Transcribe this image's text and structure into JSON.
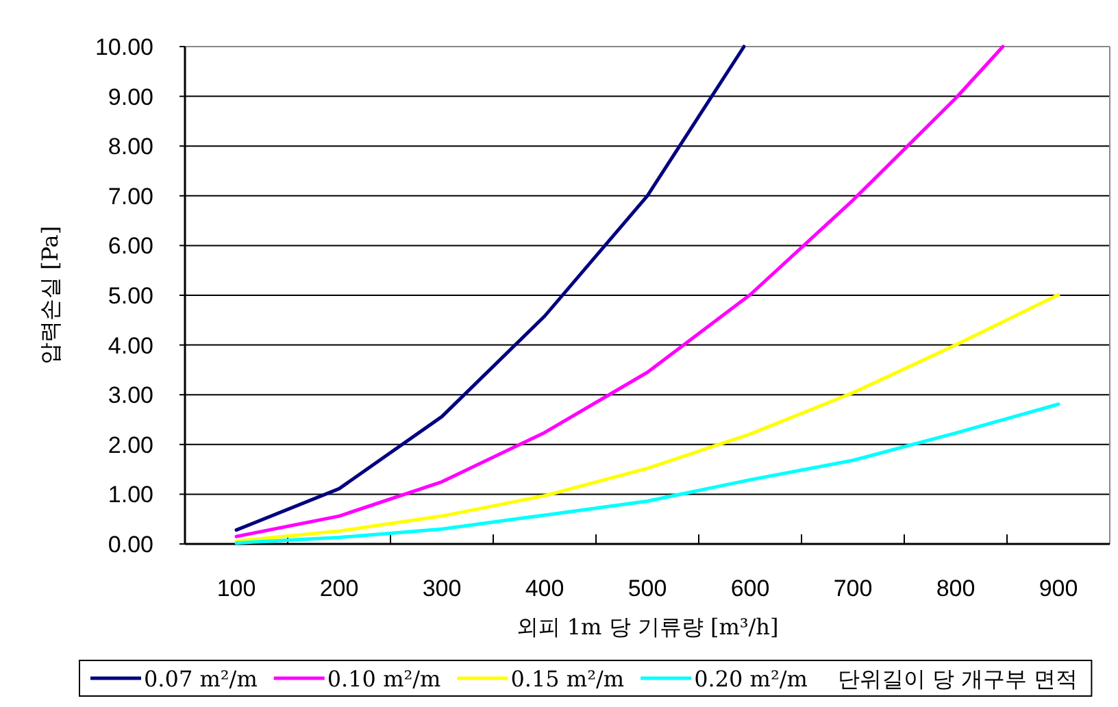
{
  "chart_data": {
    "type": "line",
    "xlabel": "외피 1m 당 기류량 [m³/h]",
    "ylabel": "압력손실 [Pa]",
    "legend_title": "단위길이 당 개구부 면적",
    "xlim": [
      50,
      950
    ],
    "xticks": [
      100,
      {
        "value": 150,
        "label": null
      },
      200,
      {
        "value": 250,
        "label": null
      },
      300,
      {
        "value": 350,
        "label": null
      },
      400,
      {
        "value": 450,
        "label": null
      },
      500,
      {
        "value": 550,
        "label": null
      },
      600,
      {
        "value": 650,
        "label": null
      },
      700,
      {
        "value": 750,
        "label": null
      },
      800,
      {
        "value": 850,
        "label": null
      },
      900
    ],
    "ylim": [
      0,
      10
    ],
    "yticks": [
      {
        "value": 0,
        "label": "0.00"
      },
      {
        "value": 1,
        "label": "1.00"
      },
      {
        "value": 2,
        "label": "2.00"
      },
      {
        "value": 3,
        "label": "3.00"
      },
      {
        "value": 4,
        "label": "4.00"
      },
      {
        "value": 5,
        "label": "5.00"
      },
      {
        "value": 6,
        "label": "6.00"
      },
      {
        "value": 7,
        "label": "7.00"
      },
      {
        "value": 8,
        "label": "8.00"
      },
      {
        "value": 9,
        "label": "9.00"
      },
      {
        "value": 10,
        "label": "10.00"
      }
    ],
    "grid": "y",
    "legend": "bottom",
    "series": [
      {
        "name": "0.07 m²/m",
        "color": "#000080",
        "x": [
          100,
          200,
          300,
          400,
          500,
          594
        ],
        "values": [
          0.28,
          1.11,
          2.56,
          4.58,
          7.0,
          10
        ]
      },
      {
        "name": "0.10 m²/m",
        "color": "#ff00ff",
        "x": [
          100,
          200,
          300,
          400,
          500,
          600,
          700,
          800,
          846
        ],
        "values": [
          0.15,
          0.56,
          1.25,
          2.24,
          3.45,
          5.01,
          6.91,
          8.96,
          10
        ]
      },
      {
        "name": "0.15 m²/m",
        "color": "#ffff00",
        "x": [
          100,
          200,
          300,
          400,
          500,
          600,
          700,
          800,
          900
        ],
        "values": [
          0.06,
          0.26,
          0.56,
          0.97,
          1.52,
          2.21,
          3.04,
          4.0,
          5.01
        ]
      },
      {
        "name": "0.20 m²/m",
        "color": "#00ffff",
        "x": [
          100,
          200,
          300,
          400,
          500,
          600,
          700,
          800,
          900
        ],
        "values": [
          0.02,
          0.13,
          0.3,
          0.58,
          0.86,
          1.29,
          1.68,
          2.23,
          2.81
        ]
      }
    ]
  }
}
